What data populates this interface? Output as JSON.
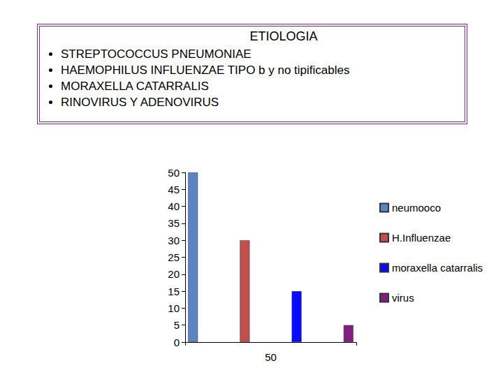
{
  "chart_data": {
    "type": "bar",
    "title": "ETIOLOGIA",
    "annotations": [
      "STREPTOCOCCUS PNEUMONIAE",
      "HAEMOPHILUS INFLUENZAE TIPO b y no tipificables",
      "MORAXELLA CATARRALIS",
      "RINOVIRUS Y ADENOVIRUS"
    ],
    "categories": [
      "50"
    ],
    "series": [
      {
        "name": "neumooco",
        "color": "#5a84c4",
        "values": [
          50
        ]
      },
      {
        "name": "H.Influenzae",
        "color": "#c0504d",
        "values": [
          30
        ]
      },
      {
        "name": "moraxella catarralis",
        "color": "#0a0aff",
        "values": [
          15
        ]
      },
      {
        "name": "virus",
        "color": "#7f1f7f",
        "values": [
          5
        ]
      }
    ],
    "ylim": [
      0,
      50
    ],
    "yticks": [
      0,
      5,
      10,
      15,
      20,
      25,
      30,
      35,
      40,
      45,
      50
    ],
    "grid": false,
    "legend": "right"
  }
}
